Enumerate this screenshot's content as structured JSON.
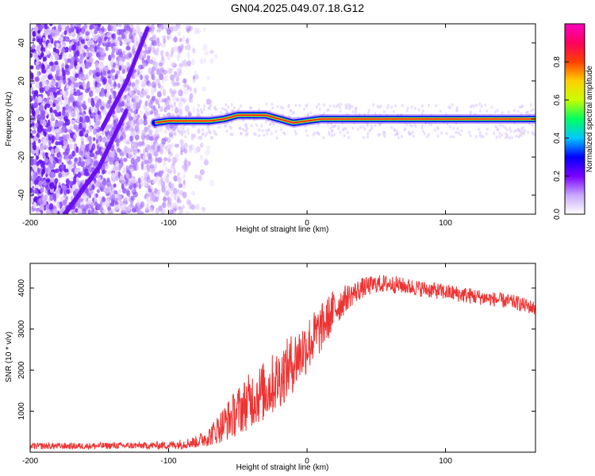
{
  "title": "GN04.2025.049.07.18.G12",
  "chart_data": [
    {
      "type": "heatmap",
      "xlabel": "Height of straight line (km)",
      "ylabel": "Frequency (Hz)",
      "xlim": [
        -200,
        165
      ],
      "ylim": [
        -50,
        50
      ],
      "xticks": [
        -200,
        -100,
        0,
        100
      ],
      "yticks": [
        -40,
        -20,
        0,
        20,
        40
      ],
      "colorbar": {
        "label": "Normalized spectral amplitude",
        "range": [
          0,
          1
        ],
        "ticks": [
          0.0,
          0.2,
          0.4,
          0.6,
          0.8
        ],
        "colors": [
          "#ffffff",
          "#c8a8ff",
          "#7a00ff",
          "#0000ff",
          "#00c8ff",
          "#00ff60",
          "#c8ff00",
          "#ffd000",
          "#ff4000",
          "#ff0060",
          "#ff00c0"
        ]
      },
      "carrier_track": {
        "x": [
          -110,
          -100,
          -90,
          -80,
          -70,
          -60,
          -50,
          -40,
          -30,
          -20,
          -10,
          0,
          10,
          20,
          60,
          100,
          165
        ],
        "y": [
          -2,
          -1,
          -1,
          -1,
          -1,
          0,
          2,
          2,
          2,
          0,
          -2,
          -1,
          0,
          0,
          0,
          0,
          0
        ]
      },
      "noise_x_range": [
        -200,
        -65
      ],
      "diagonal_features": [
        {
          "x": [
            -175,
            -150,
            -130
          ],
          "y": [
            -50,
            -25,
            5
          ]
        },
        {
          "x": [
            -148,
            -130,
            -115
          ],
          "y": [
            -5,
            20,
            48
          ]
        }
      ]
    },
    {
      "type": "line",
      "color": "#ee3333",
      "xlabel": "Height of straight line (km)",
      "ylabel": "SNR (10 * v/v)",
      "xlim": [
        -200,
        165
      ],
      "ylim": [
        0,
        4600
      ],
      "xticks": [
        -200,
        -100,
        0,
        100
      ],
      "yticks": [
        1000,
        2000,
        3000,
        4000
      ],
      "x": [
        -200,
        -180,
        -160,
        -140,
        -120,
        -100,
        -90,
        -80,
        -70,
        -60,
        -50,
        -40,
        -30,
        -20,
        -10,
        0,
        10,
        20,
        30,
        40,
        50,
        60,
        70,
        80,
        90,
        100,
        110,
        120,
        130,
        140,
        150,
        165
      ],
      "y": [
        150,
        150,
        150,
        160,
        160,
        170,
        200,
        250,
        400,
        700,
        1000,
        1300,
        1500,
        1800,
        2200,
        2600,
        3000,
        3500,
        3800,
        4000,
        4100,
        4100,
        4050,
        4000,
        3950,
        3900,
        3850,
        3800,
        3750,
        3700,
        3650,
        3500
      ],
      "noise_amplitude": [
        80,
        80,
        80,
        80,
        80,
        100,
        120,
        150,
        250,
        450,
        600,
        700,
        750,
        750,
        750,
        700,
        600,
        500,
        300,
        250,
        220,
        220,
        200,
        200,
        200,
        200,
        200,
        200,
        180,
        180,
        180,
        180
      ]
    }
  ]
}
